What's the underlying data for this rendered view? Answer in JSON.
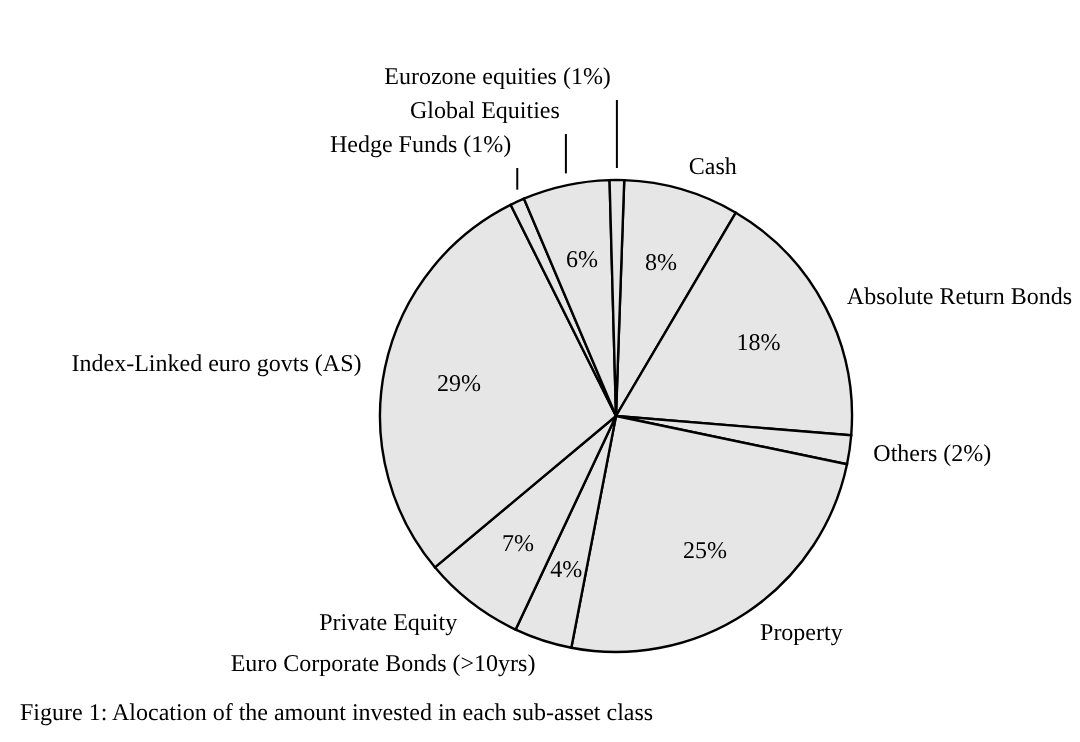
{
  "chart_data": {
    "type": "pie",
    "categories": [
      "Cash",
      "Absolute Return Bonds",
      "Others (2%)",
      "Property",
      "Euro Corporate Bonds (>10yrs)",
      "Private Equity",
      "Index-Linked euro govts (AS)",
      "Hedge Funds (1%)",
      "Global Equities",
      "Eurozone equities (1%)"
    ],
    "values": [
      8,
      18,
      2,
      25,
      4,
      7,
      29,
      1,
      6,
      1
    ],
    "value_labels": [
      "8%",
      "18%",
      null,
      "25%",
      "4%",
      "7%",
      "29%",
      null,
      "6%",
      null
    ],
    "colors": [
      "#e6e6e6",
      "#e6e6e6",
      "#e6e6e6",
      "#e6e6e6",
      "#e6e6e6",
      "#e6e6e6",
      "#e6e6e6",
      "#e6e6e6",
      "#e6e6e6",
      "#e6e6e6"
    ],
    "legend": false,
    "annotations": [
      "Figure 1: Alocation of the amount invested in each sub-asset class"
    ]
  }
}
